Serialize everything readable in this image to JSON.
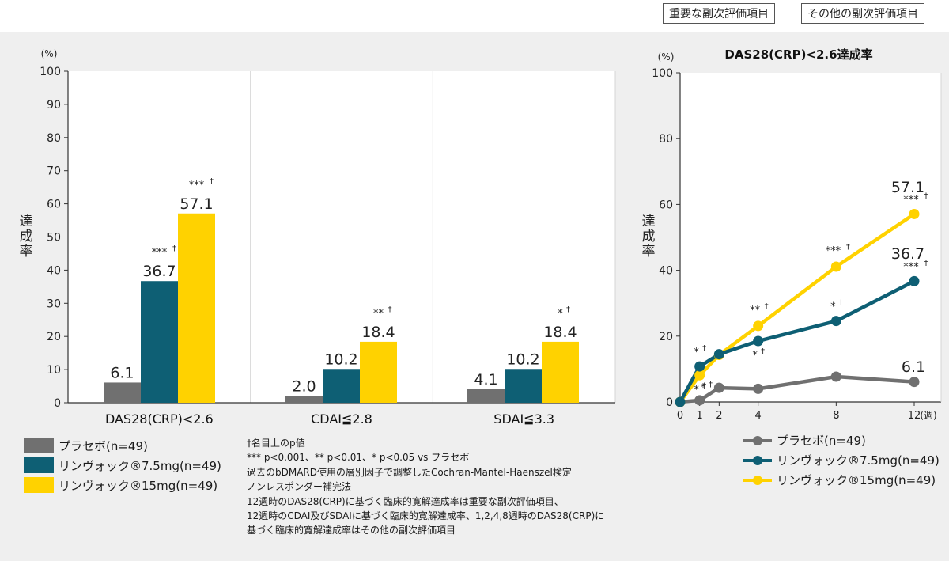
{
  "header": {
    "tags": [
      "重要な副次評価項目",
      "その他の副次評価項目"
    ]
  },
  "colors": {
    "placebo": "#707070",
    "rinvoq_7_5": "#0e5f74",
    "rinvoq_15": "#ffd200",
    "grid": "#c8c8c8"
  },
  "chart_data": [
    {
      "type": "bar",
      "title": "",
      "unit_label": "(%)",
      "ylabel": "達成率",
      "ylim": [
        0,
        100
      ],
      "yticks": [
        0,
        10,
        20,
        30,
        40,
        50,
        60,
        70,
        80,
        90,
        100
      ],
      "categories": [
        "DAS28(CRP)<2.6",
        "CDAI≦2.8",
        "SDAI≦3.3"
      ],
      "series": [
        {
          "name": "プラセボ(n=49)",
          "values": [
            6.1,
            2.0,
            4.1
          ],
          "labels": [
            "6.1",
            "2.0",
            "4.1"
          ],
          "sig": [
            "",
            "",
            ""
          ]
        },
        {
          "name": "リンヴォック®7.5mg(n=49)",
          "values": [
            36.7,
            10.2,
            10.2
          ],
          "labels": [
            "36.7",
            "10.2",
            "10.2"
          ],
          "sig": [
            "***†",
            "",
            ""
          ]
        },
        {
          "name": "リンヴォック®15mg(n=49)",
          "values": [
            57.1,
            18.4,
            18.4
          ],
          "labels": [
            "57.1",
            "18.4",
            "18.4"
          ],
          "sig": [
            "***†",
            "**†",
            "*†"
          ]
        }
      ]
    },
    {
      "type": "line",
      "title": "DAS28(CRP)<2.6達成率",
      "unit_label": "(%)",
      "ylabel": "達成率",
      "xunit": "(週)",
      "ylim": [
        0,
        100
      ],
      "yticks": [
        0,
        20,
        40,
        60,
        80,
        100
      ],
      "x": [
        0,
        1,
        2,
        4,
        8,
        12
      ],
      "xtick_labels": [
        "0",
        "1",
        "2",
        "4",
        "8",
        "12"
      ],
      "series": [
        {
          "name": "プラセボ(n=49)",
          "values": [
            0,
            0.5,
            4.3,
            4.0,
            7.7,
            6.1
          ],
          "end_label": "6.1",
          "sig": [
            "",
            "",
            "",
            "",
            "",
            ""
          ]
        },
        {
          "name": "リンヴォック®7.5mg(n=49)",
          "values": [
            0,
            10.8,
            14.5,
            18.5,
            24.6,
            36.7
          ],
          "end_label": "36.7",
          "sig": [
            "",
            "*†",
            "",
            "*†",
            "*†",
            "***†"
          ]
        },
        {
          "name": "リンヴォック®15mg(n=49)",
          "values": [
            0,
            8.1,
            14.3,
            23.1,
            41.1,
            57.1
          ],
          "end_label": "57.1",
          "sig": [
            "",
            "*†",
            "",
            "**†",
            "***†",
            "***†"
          ]
        }
      ]
    }
  ],
  "bar_legend": [
    "プラセボ(n=49)",
    "リンヴォック®7.5mg(n=49)",
    "リンヴォック®15mg(n=49)"
  ],
  "line_legend": [
    "プラセボ(n=49)",
    "リンヴォック®7.5mg(n=49)",
    "リンヴォック®15mg(n=49)"
  ],
  "footnotes": [
    "†名目上のp値",
    "*** p<0.001、** p<0.01、* p<0.05 vs プラセボ",
    "過去のbDMARD使用の層別因子で調整したCochran-Mantel-Haenszel検定",
    "ノンレスポンダー補完法",
    "12週時のDAS28(CRP)に基づく臨床的寛解達成率は重要な副次評価項目、",
    "12週時のCDAI及びSDAIに基づく臨床的寛解達成率、1,2,4,8週時のDAS28(CRP)に",
    "基づく臨床的寛解達成率はその他の副次評価項目"
  ]
}
